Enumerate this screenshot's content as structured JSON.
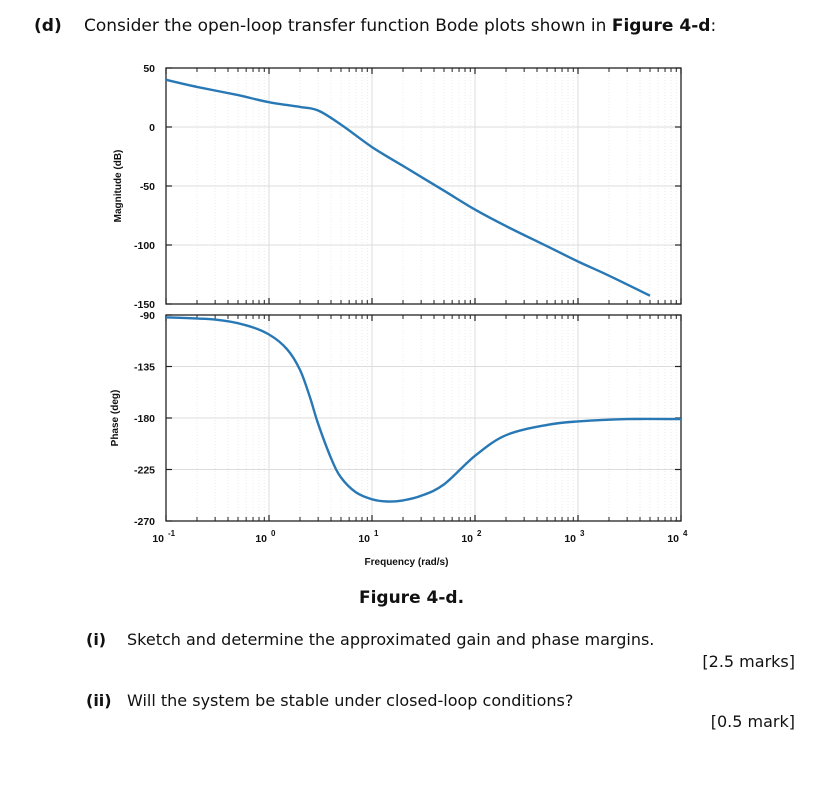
{
  "question": {
    "label": "(d)",
    "text_before": "Consider the open-loop transfer function Bode plots shown in ",
    "figure_ref": "Figure 4-d",
    "text_after": ":"
  },
  "figure": {
    "caption": "Figure 4-d.",
    "line_color": "#2878b5"
  },
  "subquestions": [
    {
      "num": "(i)",
      "text": "Sketch and determine the approximated gain and phase margins.",
      "marks": "[2.5 marks]"
    },
    {
      "num": "(ii)",
      "text": "Will the system be stable under closed-loop conditions?",
      "marks": "[0.5 mark]"
    }
  ],
  "chart_data": [
    {
      "type": "line",
      "title": "Bode Magnitude",
      "xlabel": "Frequency (rad/s)",
      "ylabel": "Magnitude (dB)",
      "xscale": "log",
      "xlim": [
        0.1,
        10000
      ],
      "ylim": [
        -150,
        50
      ],
      "yticks": [
        50,
        0,
        -50,
        -100,
        -150
      ],
      "ytick_labels": [
        "50",
        "0",
        "-50",
        "-100",
        "-150"
      ],
      "grid": true,
      "x": [
        0.1,
        0.2,
        0.5,
        1,
        2,
        3,
        5,
        10,
        20,
        50,
        100,
        200,
        500,
        1000,
        2000,
        5000
      ],
      "values": [
        40,
        34,
        27,
        21,
        17,
        14,
        2,
        -17,
        -33,
        -54,
        -70,
        -84,
        -101,
        -114,
        -126,
        -143
      ]
    },
    {
      "type": "line",
      "title": "Bode Phase",
      "xlabel": "Frequency (rad/s)",
      "ylabel": "Phase (deg)",
      "xscale": "log",
      "xlim": [
        0.1,
        10000
      ],
      "ylim": [
        -270,
        -90
      ],
      "yticks": [
        -90,
        -135,
        -180,
        -225,
        -270
      ],
      "ytick_labels": [
        "-90",
        "-135",
        "-180",
        "-225",
        "-270"
      ],
      "xticks": [
        0.1,
        1,
        10,
        100,
        1000,
        10000
      ],
      "xtick_labels": [
        {
          "base": "10",
          "exp": "-1"
        },
        {
          "base": "10",
          "exp": "0"
        },
        {
          "base": "10",
          "exp": "1"
        },
        {
          "base": "10",
          "exp": "2"
        },
        {
          "base": "10",
          "exp": "3"
        },
        {
          "base": "10",
          "exp": "4"
        }
      ],
      "grid": true,
      "x": [
        0.1,
        0.3,
        0.6,
        1,
        1.5,
        2,
        2.5,
        3,
        4,
        5,
        7,
        10,
        14,
        20,
        30,
        50,
        100,
        200,
        500,
        1000,
        3000,
        10000
      ],
      "values": [
        -92,
        -94,
        -99,
        -107,
        -120,
        -138,
        -162,
        -185,
        -215,
        -232,
        -245,
        -251,
        -253,
        -252,
        -248,
        -238,
        -213,
        -195,
        -186,
        -183,
        -181,
        -181
      ]
    }
  ]
}
